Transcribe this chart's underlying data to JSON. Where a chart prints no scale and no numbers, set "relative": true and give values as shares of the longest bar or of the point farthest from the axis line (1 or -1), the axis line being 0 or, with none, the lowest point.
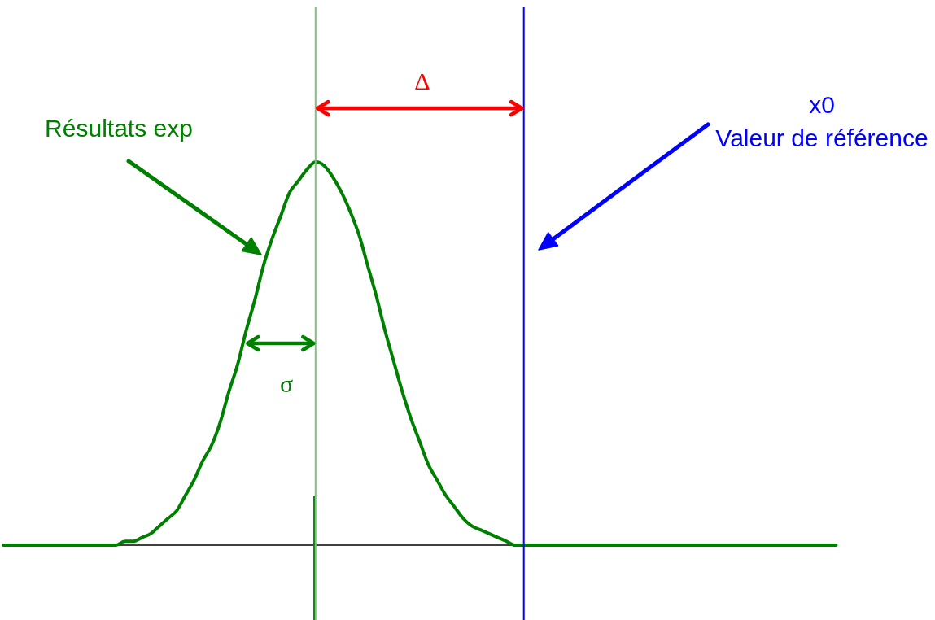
{
  "chart_data": {
    "type": "line",
    "relative": true,
    "categories": [
      null,
      null,
      null,
      null,
      null,
      null,
      null,
      null,
      null,
      null,
      null,
      null,
      null,
      null,
      null,
      null,
      null,
      null,
      null,
      null,
      null,
      null,
      null,
      null,
      null,
      null,
      null,
      null,
      null,
      null,
      null,
      null,
      null,
      null,
      null,
      null,
      null,
      null,
      null,
      null,
      null,
      null,
      null,
      null,
      null,
      null,
      null,
      null,
      null,
      null,
      null,
      null,
      null,
      null,
      null,
      null,
      null,
      null,
      null,
      null,
      null,
      null,
      null,
      null,
      null,
      null,
      null,
      null,
      null,
      null,
      null,
      null,
      null,
      null,
      null,
      null,
      null,
      null,
      null,
      null,
      null,
      null,
      null,
      null,
      null,
      null,
      null,
      null,
      null,
      null,
      null,
      null,
      null,
      null,
      null,
      null,
      null
    ],
    "series": [
      {
        "color": "#008000",
        "values": [
          0,
          0,
          0,
          0,
          0,
          0,
          0,
          0,
          0,
          0,
          0,
          0,
          0,
          0,
          0.01,
          0.01,
          0.02,
          0.03,
          0.05,
          0.07,
          0.09,
          0.13,
          0.17,
          0.22,
          0.26,
          0.32,
          0.4,
          0.47,
          0.56,
          0.64,
          0.73,
          0.8,
          0.86,
          0.92,
          0.95,
          0.98,
          1,
          0.99,
          0.96,
          0.92,
          0.87,
          0.81,
          0.73,
          0.65,
          0.56,
          0.48,
          0.4,
          0.33,
          0.27,
          0.21,
          0.17,
          0.13,
          0.1,
          0.07,
          0.05,
          0.04,
          0.03,
          0.02,
          0.01,
          0,
          0,
          0,
          0,
          0,
          0,
          0,
          0,
          0,
          0,
          0,
          0,
          0,
          0,
          0,
          0,
          0,
          0,
          0,
          0,
          0,
          0,
          0,
          0,
          0,
          0,
          0,
          0,
          0,
          0,
          0,
          0,
          0,
          0,
          0,
          0,
          0,
          0
        ]
      }
    ],
    "annotations": [
      "Résultats exp",
      "σ",
      "Δ",
      "x0",
      "Valeur de référence"
    ]
  }
}
